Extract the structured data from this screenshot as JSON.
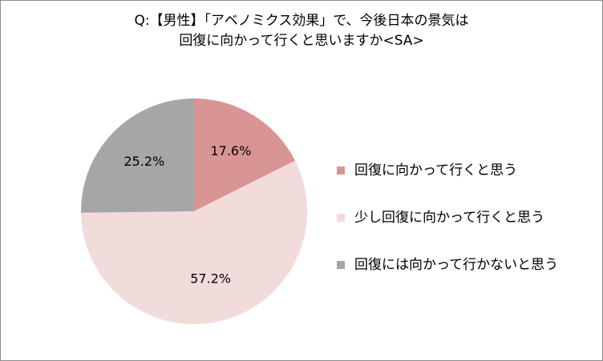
{
  "chart_data": {
    "type": "pie",
    "title_line1": "Q:【男性】「アベノミクス効果」で、今後日本の景気は",
    "title_line2": "回復に向かって行くと思いますか<SA>",
    "slices": [
      {
        "label": "回復に向かって行くと思う",
        "value": 17.6,
        "display": "17.6%",
        "color": "#d99594"
      },
      {
        "label": "少し回復に向かって行くと思う",
        "value": 57.2,
        "display": "57.2%",
        "color": "#f2dcdb"
      },
      {
        "label": "回復には向かって行かないと思う",
        "value": 25.2,
        "display": "25.2%",
        "color": "#a6a6a6"
      }
    ],
    "legend_position": "right"
  }
}
